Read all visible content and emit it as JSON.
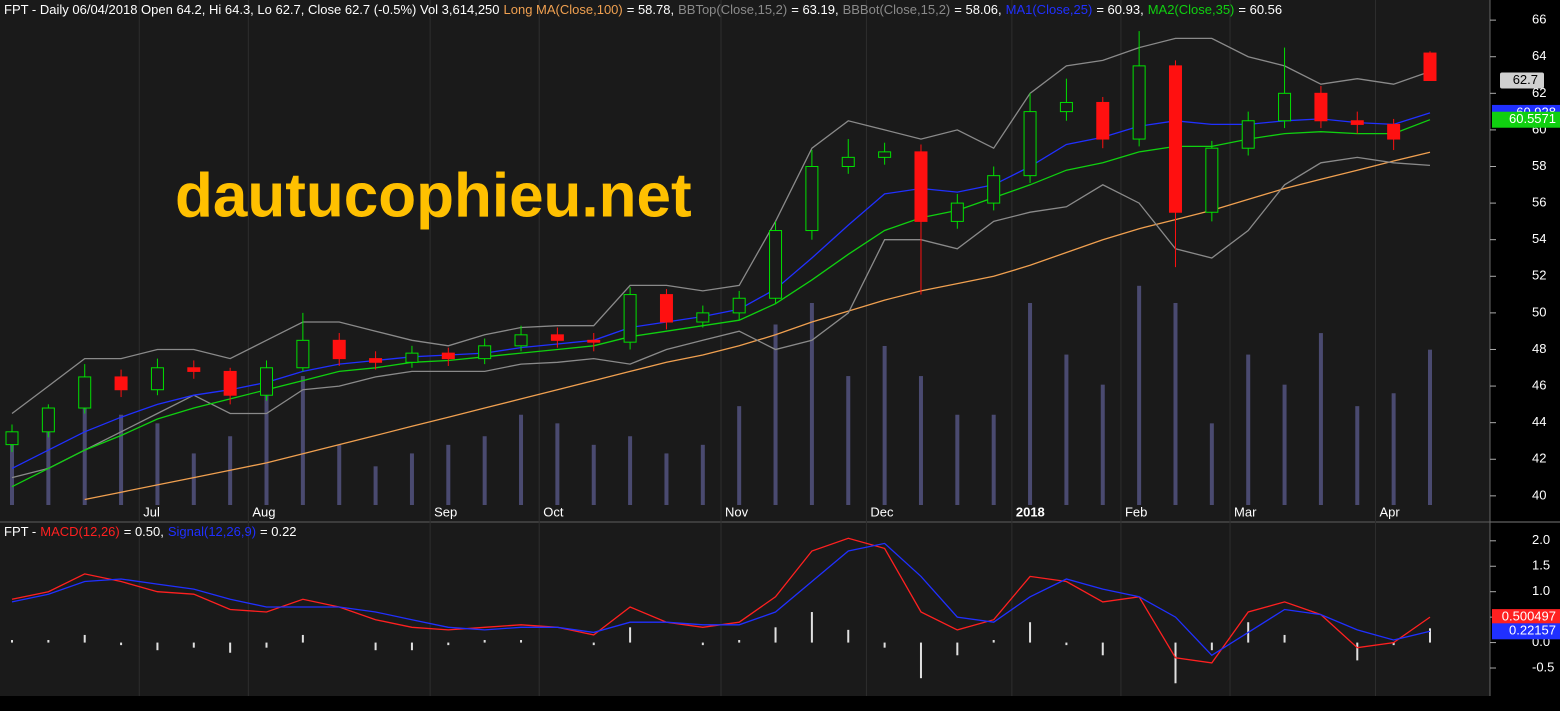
{
  "chart_data": [
    {
      "type": "candlestick",
      "info": "FPT - Daily 06/04/2018 Open 64.2, Hi 64.3, Lo 62.7, Close 62.7 (-0.5%) Vol 3,614,250",
      "watermark": "dautucophieu.net",
      "categories": [
        null,
        null,
        null,
        null,
        "Jul",
        null,
        null,
        "Aug",
        null,
        null,
        null,
        null,
        "Sep",
        null,
        null,
        "Oct",
        null,
        null,
        null,
        null,
        "Nov",
        null,
        null,
        null,
        "Dec",
        null,
        null,
        null,
        "2018",
        null,
        null,
        "Feb",
        null,
        null,
        "Mar",
        null,
        null,
        null,
        "Apr",
        null
      ],
      "open": [
        42.8,
        43.5,
        44.8,
        46.5,
        45.8,
        47,
        46.8,
        45.5,
        47,
        48.5,
        47.5,
        47.3,
        47.8,
        47.5,
        48.2,
        48.8,
        48.5,
        48.4,
        51,
        49.5,
        50,
        50.8,
        54.5,
        58,
        58.5,
        58.8,
        55,
        56,
        57.5,
        61,
        61.5,
        59.5,
        63.5,
        55.5,
        59,
        60.5,
        62,
        60.5,
        60.3,
        64.2
      ],
      "high": [
        43.9,
        45.0,
        47.2,
        46.9,
        47.5,
        47.4,
        47.0,
        47.4,
        50.0,
        48.9,
        47.9,
        48.2,
        48.1,
        48.6,
        49.3,
        49.2,
        48.9,
        51.4,
        51.3,
        50.4,
        51.2,
        55.0,
        58.9,
        59.5,
        59.3,
        59.2,
        56.5,
        58.0,
        62.0,
        62.8,
        61.8,
        65.4,
        63.8,
        59.4,
        61.0,
        64.5,
        62.4,
        61.0,
        60.6,
        64.3
      ],
      "low": [
        42.4,
        43.2,
        44.5,
        45.4,
        45.5,
        46.4,
        45.0,
        45.2,
        46.8,
        47.1,
        46.9,
        47.0,
        47.1,
        47.2,
        47.9,
        48.1,
        47.9,
        48.0,
        49.1,
        49.2,
        49.6,
        50.5,
        54.0,
        57.6,
        58.1,
        51.0,
        54.6,
        55.6,
        57.1,
        60.5,
        59.0,
        59.1,
        52.5,
        55.0,
        58.6,
        60.1,
        60.1,
        59.8,
        58.9,
        62.7
      ],
      "close": [
        43.5,
        44.8,
        46.5,
        45.8,
        47,
        46.8,
        45.5,
        47,
        48.5,
        47.5,
        47.3,
        47.8,
        47.5,
        48.2,
        48.8,
        48.5,
        48.4,
        51,
        49.5,
        50,
        50.8,
        54.5,
        58,
        58.5,
        58.8,
        55,
        56,
        57.5,
        61,
        61.5,
        59.5,
        63.5,
        55.5,
        59,
        60.5,
        62,
        60.5,
        60.3,
        59.5,
        62.7
      ],
      "up_color": "#00e000",
      "down_color": "#ff1010",
      "close_tag": "62.7",
      "volume": [
        1400000,
        1900000,
        2800000,
        2100000,
        1900000,
        1200000,
        1600000,
        2600000,
        3000000,
        1400000,
        900000,
        1200000,
        1400000,
        1600000,
        2100000,
        1900000,
        1400000,
        1600000,
        1200000,
        1400000,
        2300000,
        4200000,
        4700000,
        3000000,
        3700000,
        3000000,
        2100000,
        2100000,
        4700000,
        3500000,
        2800000,
        5100000,
        4700000,
        1900000,
        3500000,
        2800000,
        4000000,
        2300000,
        2600000,
        3614250
      ],
      "volume_color": "#4a4a70",
      "volume_lim": [
        0,
        11750000
      ],
      "series": [
        {
          "name": "Long MA(Close,100)",
          "last_label": "= 58.78,",
          "color": "#f0a050",
          "values": [
            null,
            null,
            39.8,
            40.2,
            40.6,
            41.0,
            41.4,
            41.8,
            42.3,
            42.8,
            43.3,
            43.8,
            44.3,
            44.8,
            45.3,
            45.8,
            46.3,
            46.8,
            47.3,
            47.7,
            48.2,
            48.8,
            49.5,
            50.1,
            50.7,
            51.2,
            51.6,
            52.0,
            52.6,
            53.3,
            54.0,
            54.6,
            55.1,
            55.6,
            56.2,
            56.8,
            57.3,
            57.8,
            58.3,
            58.78
          ]
        },
        {
          "name": "BBTop(Close,15,2)",
          "last_label": "= 63.19,",
          "color": "#8a8a8a",
          "values": [
            44.5,
            46,
            47.5,
            47.5,
            48,
            48,
            47.5,
            48.5,
            49.5,
            49.5,
            49,
            48.5,
            48.2,
            48.8,
            49.2,
            49.3,
            49.3,
            51.5,
            51.5,
            51.2,
            51.5,
            55,
            59,
            60.5,
            60,
            59.5,
            60,
            59,
            62,
            63.5,
            63.8,
            64.5,
            65,
            65,
            64,
            63.5,
            62.5,
            62.8,
            62.5,
            63.19
          ]
        },
        {
          "name": "BBBot(Close,15,2)",
          "last_label": "= 58.06,",
          "color": "#8a8a8a",
          "values": [
            41,
            41.5,
            42.5,
            43.5,
            44.5,
            45.5,
            44.5,
            44.5,
            45.8,
            46,
            46.5,
            46.8,
            46.8,
            46.8,
            47.2,
            47.3,
            47.5,
            47.2,
            48,
            48.5,
            49,
            48,
            48.5,
            50,
            54,
            54,
            53.5,
            55,
            55.5,
            55.8,
            57,
            56,
            53.5,
            53,
            54.5,
            57,
            58.2,
            58.5,
            58.2,
            58.06
          ]
        },
        {
          "name": "MA1(Close,25)",
          "last_label": "= 60.93,",
          "tag": "60.928",
          "color": "#2030ff",
          "values": [
            41.5,
            42.5,
            43.5,
            44.3,
            45,
            45.5,
            45.8,
            46.2,
            46.8,
            47.2,
            47.4,
            47.6,
            47.7,
            47.8,
            48.1,
            48.3,
            48.5,
            49.2,
            49.5,
            49.8,
            50.2,
            51.3,
            53,
            54.8,
            56.5,
            56.8,
            56.6,
            57,
            58,
            59.2,
            59.6,
            60.2,
            60.5,
            60.3,
            60.3,
            60.5,
            60.6,
            60.4,
            60.3,
            60.928
          ]
        },
        {
          "name": "MA2(Close,35)",
          "last_label": "= 60.56",
          "tag": "60.5571",
          "color": "#10d010",
          "values": [
            40.5,
            41.5,
            42.5,
            43.3,
            44.2,
            44.8,
            45.3,
            45.8,
            46.3,
            46.8,
            47,
            47.3,
            47.4,
            47.6,
            47.8,
            48,
            48.2,
            48.7,
            49,
            49.3,
            49.6,
            50.5,
            51.8,
            53.2,
            54.5,
            55.2,
            55.6,
            56.3,
            57,
            57.8,
            58.2,
            58.8,
            59.1,
            59.1,
            59.5,
            59.8,
            59.9,
            59.8,
            59.8,
            60.5571
          ]
        }
      ],
      "ylim": [
        39.5,
        67.1
      ],
      "yticks": [
        40,
        42,
        44,
        46,
        48,
        50,
        52,
        54,
        56,
        58,
        60,
        62,
        64,
        66
      ],
      "grid": false
    },
    {
      "type": "line",
      "prefix": "FPT -",
      "series": [
        {
          "name": "MACD(12,26)",
          "last_label": "= 0.50,",
          "tag": "0.500497",
          "color": "#ff2020",
          "values": [
            0.85,
            1.0,
            1.35,
            1.2,
            1.0,
            0.95,
            0.65,
            0.6,
            0.85,
            0.7,
            0.45,
            0.3,
            0.25,
            0.3,
            0.35,
            0.3,
            0.15,
            0.7,
            0.4,
            0.3,
            0.4,
            0.9,
            1.8,
            2.05,
            1.85,
            0.6,
            0.25,
            0.45,
            1.3,
            1.2,
            0.8,
            0.9,
            -0.3,
            -0.4,
            0.6,
            0.8,
            0.55,
            -0.1,
            0,
            0.500497
          ]
        },
        {
          "name": "Signal(12,26,9)",
          "last_label": "= 0.22",
          "tag": "0.22157",
          "color": "#2030ff",
          "values": [
            0.8,
            0.95,
            1.2,
            1.25,
            1.15,
            1.05,
            0.85,
            0.7,
            0.7,
            0.7,
            0.6,
            0.45,
            0.3,
            0.25,
            0.3,
            0.3,
            0.2,
            0.4,
            0.4,
            0.35,
            0.35,
            0.6,
            1.2,
            1.8,
            1.95,
            1.3,
            0.5,
            0.4,
            0.9,
            1.25,
            1.05,
            0.9,
            0.5,
            -0.25,
            0.2,
            0.65,
            0.55,
            0.25,
            0.05,
            0.22157
          ]
        }
      ],
      "histogram": [
        0.05,
        0.05,
        0.15,
        -0.05,
        -0.15,
        -0.1,
        -0.2,
        -0.1,
        0.15,
        0,
        -0.15,
        -0.15,
        -0.05,
        0.05,
        0.05,
        0,
        -0.05,
        0.3,
        0,
        -0.05,
        0.05,
        0.3,
        0.6,
        0.25,
        -0.1,
        -0.7,
        -0.25,
        0.05,
        0.4,
        -0.05,
        -0.25,
        0,
        -0.8,
        -0.15,
        0.4,
        0.15,
        0,
        -0.35,
        -0.05,
        0.28
      ],
      "histogram_color": "#e0e0e0",
      "ylim": [
        -1.05,
        2.35
      ],
      "yticks": [
        {
          "value": 2,
          "label": "2.0"
        },
        1.5,
        {
          "value": 1,
          "label": "1.0"
        },
        0.5,
        {
          "value": 0,
          "label": "0.0"
        },
        -0.5
      ],
      "grid": false
    }
  ]
}
